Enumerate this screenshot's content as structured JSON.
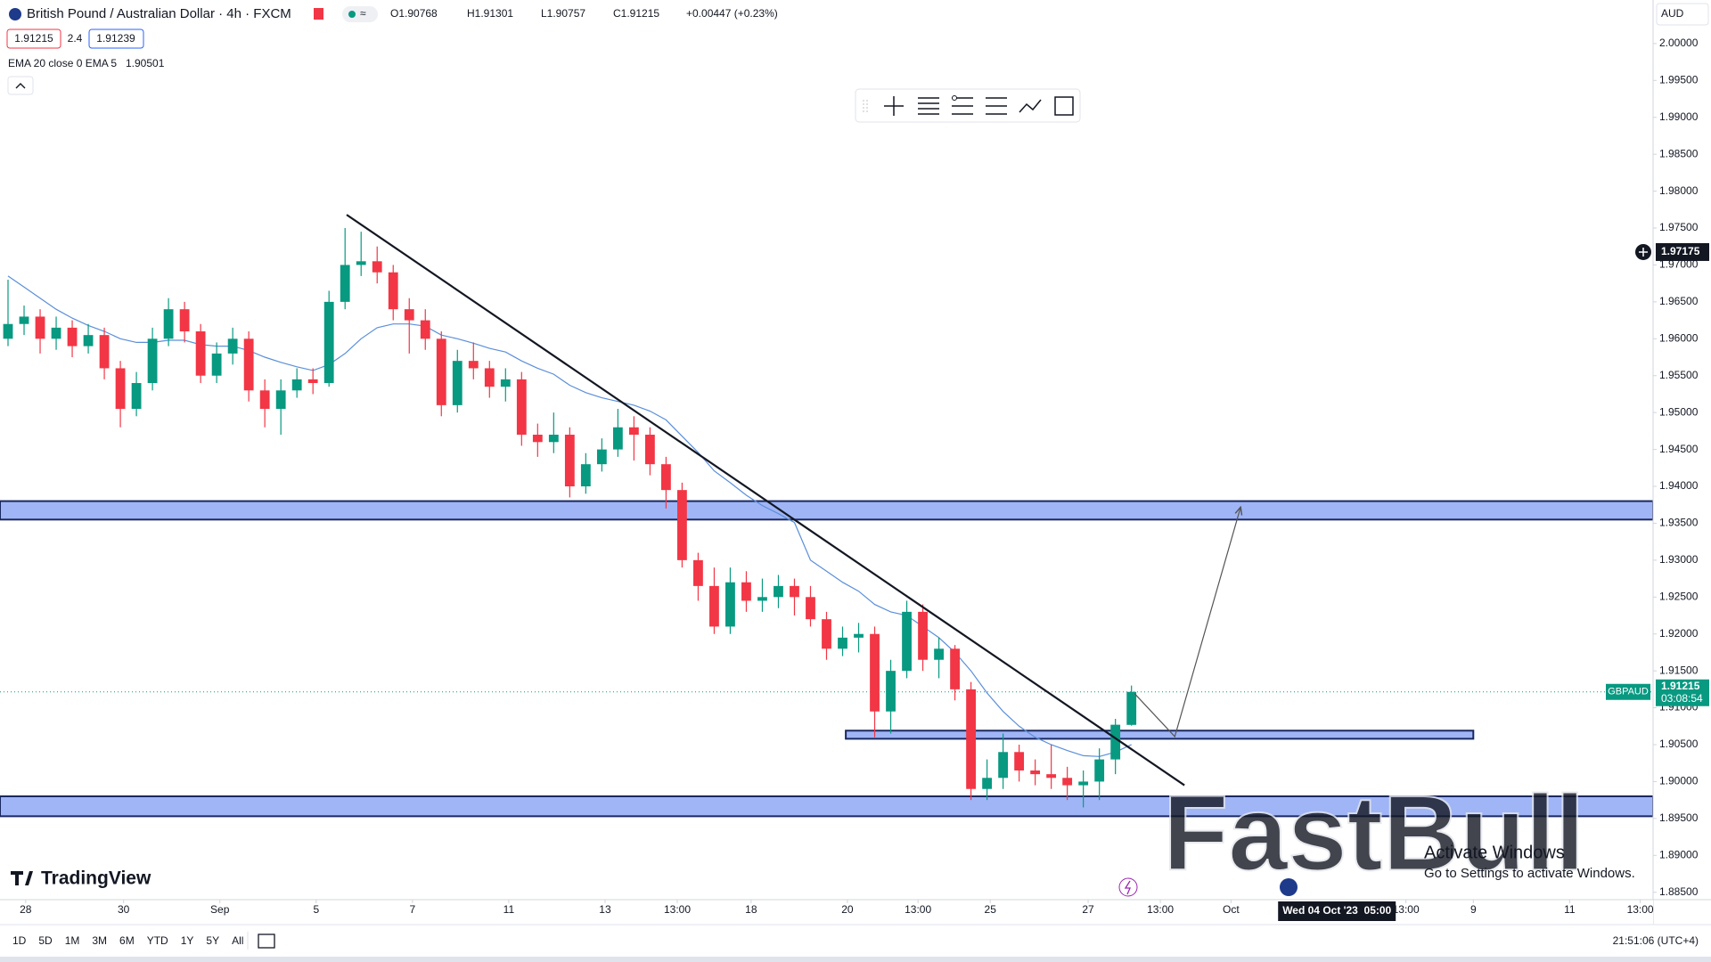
{
  "header": {
    "title": "British Pound / Australian Dollar · 4h · FXCM",
    "ohlc": [
      "O1.90768",
      "H1.91301",
      "L1.90757",
      "C1.91215",
      "+0.00447 (+0.23%)"
    ],
    "bid": "1.91215",
    "spread": "2.4",
    "ask": "1.91239",
    "indicator": "EMA 20 close 0 EMA 5",
    "indicator_value": "1.90501",
    "currency": "AUD"
  },
  "chart_data": {
    "type": "candlestick",
    "colors": {
      "up": "#089981",
      "down": "#f23645"
    },
    "open": [
      1.96,
      1.962,
      1.963,
      1.96,
      1.9615,
      1.959,
      1.9605,
      1.956,
      1.9505,
      1.954,
      1.96,
      1.964,
      1.961,
      1.955,
      1.958,
      1.96,
      1.953,
      1.9505,
      1.953,
      1.9545,
      1.954,
      1.965,
      1.97,
      1.9705,
      1.969,
      1.964,
      1.9625,
      1.96,
      1.951,
      1.957,
      1.956,
      1.9535,
      1.9545,
      1.947,
      1.946,
      1.947,
      1.94,
      1.943,
      1.945,
      1.948,
      1.947,
      1.943,
      1.9395,
      1.93,
      1.9265,
      1.921,
      1.927,
      1.9245,
      1.925,
      1.9265,
      1.925,
      1.922,
      1.918,
      1.9195,
      1.92,
      1.9095,
      1.915,
      1.923,
      1.9165,
      1.918,
      1.9125,
      1.899,
      1.9005,
      1.904,
      1.9015,
      1.901,
      1.9005,
      1.8995,
      1.9,
      1.903,
      1.90768
    ],
    "high": [
      1.968,
      1.9645,
      1.964,
      1.963,
      1.9625,
      1.962,
      1.9615,
      1.957,
      1.9555,
      1.9615,
      1.9655,
      1.965,
      1.962,
      1.9595,
      1.9615,
      1.961,
      1.9545,
      1.9545,
      1.956,
      1.956,
      1.9665,
      1.975,
      1.9745,
      1.9725,
      1.97,
      1.9655,
      1.964,
      1.961,
      1.9585,
      1.9595,
      1.957,
      1.956,
      1.9555,
      1.9485,
      1.95,
      1.948,
      1.9445,
      1.9465,
      1.9505,
      1.9495,
      1.948,
      1.944,
      1.9405,
      1.931,
      1.929,
      1.929,
      1.9285,
      1.9275,
      1.928,
      1.9275,
      1.9265,
      1.923,
      1.921,
      1.9215,
      1.921,
      1.9165,
      1.9245,
      1.924,
      1.9195,
      1.9185,
      1.9135,
      1.903,
      1.9065,
      1.905,
      1.903,
      1.905,
      1.902,
      1.9015,
      1.9045,
      1.9085,
      1.91301
    ],
    "low": [
      1.959,
      1.9605,
      1.958,
      1.9585,
      1.9575,
      1.958,
      1.9545,
      1.948,
      1.9495,
      1.953,
      1.959,
      1.9595,
      1.954,
      1.954,
      1.9565,
      1.9515,
      1.948,
      1.947,
      1.952,
      1.9525,
      1.9535,
      1.964,
      1.9685,
      1.9675,
      1.9625,
      1.958,
      1.9585,
      1.9495,
      1.95,
      1.9545,
      1.952,
      1.9515,
      1.9455,
      1.944,
      1.9445,
      1.9385,
      1.939,
      1.942,
      1.944,
      1.9435,
      1.9415,
      1.937,
      1.929,
      1.9245,
      1.92,
      1.92,
      1.923,
      1.923,
      1.9235,
      1.9225,
      1.921,
      1.9165,
      1.917,
      1.9175,
      1.906,
      1.9065,
      1.914,
      1.915,
      1.914,
      1.911,
      1.8975,
      1.8975,
      1.899,
      1.9,
      1.8995,
      1.899,
      1.8975,
      1.8965,
      1.8975,
      1.901,
      1.90757
    ],
    "close": [
      1.962,
      1.963,
      1.96,
      1.9615,
      1.959,
      1.9605,
      1.956,
      1.9505,
      1.954,
      1.96,
      1.964,
      1.961,
      1.955,
      1.958,
      1.96,
      1.953,
      1.9505,
      1.953,
      1.9545,
      1.954,
      1.965,
      1.97,
      1.9705,
      1.969,
      1.964,
      1.9625,
      1.96,
      1.951,
      1.957,
      1.956,
      1.9535,
      1.9545,
      1.947,
      1.946,
      1.947,
      1.94,
      1.943,
      1.945,
      1.948,
      1.947,
      1.943,
      1.9395,
      1.93,
      1.9265,
      1.921,
      1.927,
      1.9245,
      1.925,
      1.9265,
      1.925,
      1.922,
      1.918,
      1.9195,
      1.92,
      1.9095,
      1.915,
      1.923,
      1.9165,
      1.918,
      1.9125,
      1.899,
      1.9005,
      1.904,
      1.9015,
      1.901,
      1.9005,
      1.8995,
      1.9,
      1.903,
      1.9077,
      1.91215
    ],
    "ema": {
      "color": "#5b8fd9",
      "values": [
        1.9685,
        1.967,
        1.9655,
        1.964,
        1.9628,
        1.9618,
        1.961,
        1.96,
        1.9595,
        1.9595,
        1.9598,
        1.9598,
        1.9592,
        1.959,
        1.959,
        1.9584,
        1.9575,
        1.9568,
        1.9562,
        1.9557,
        1.9565,
        1.958,
        1.96,
        1.9615,
        1.962,
        1.962,
        1.9617,
        1.9605,
        1.96,
        1.9594,
        1.9587,
        1.9582,
        1.957,
        1.956,
        1.9552,
        1.9537,
        1.9527,
        1.952,
        1.9515,
        1.951,
        1.9502,
        1.949,
        1.9468,
        1.9446,
        1.9421,
        1.9405,
        1.9388,
        1.9374,
        1.9363,
        1.9351,
        1.93,
        1.9285,
        1.927,
        1.9258,
        1.924,
        1.923,
        1.9225,
        1.921,
        1.9195,
        1.9175,
        1.915,
        1.912,
        1.9095,
        1.9075,
        1.906,
        1.905,
        1.9042,
        1.9035,
        1.9034,
        1.904,
        1.90501
      ]
    },
    "xlim": [
      0,
      103
    ],
    "ylim": [
      1.884,
      2.0059
    ],
    "yticks": [
      {
        "value": 1.885,
        "label": "1.88500"
      },
      {
        "value": 1.89,
        "label": "1.89000"
      },
      {
        "value": 1.895,
        "label": "1.89500"
      },
      {
        "value": 1.9,
        "label": "1.90000"
      },
      {
        "value": 1.905,
        "label": "1.90500"
      },
      {
        "value": 1.91,
        "label": "1.91000"
      },
      {
        "value": 1.915,
        "label": "1.91500"
      },
      {
        "value": 1.92,
        "label": "1.92000"
      },
      {
        "value": 1.925,
        "label": "1.92500"
      },
      {
        "value": 1.93,
        "label": "1.93000"
      },
      {
        "value": 1.935,
        "label": "1.93500"
      },
      {
        "value": 1.94,
        "label": "1.94000"
      },
      {
        "value": 1.945,
        "label": "1.94500"
      },
      {
        "value": 1.95,
        "label": "1.95000"
      },
      {
        "value": 1.955,
        "label": "1.95500"
      },
      {
        "value": 1.96,
        "label": "1.96000"
      },
      {
        "value": 1.965,
        "label": "1.96500"
      },
      {
        "value": 1.97,
        "label": "1.97000"
      },
      {
        "value": 1.975,
        "label": "1.97500"
      },
      {
        "value": 1.98,
        "label": "1.98000"
      },
      {
        "value": 1.985,
        "label": "1.98500"
      },
      {
        "value": 1.99,
        "label": "1.99000"
      },
      {
        "value": 1.995,
        "label": "1.99500"
      },
      {
        "value": 2.0,
        "label": "2.00000"
      }
    ],
    "xticks": [
      {
        "value": 1.6,
        "label": "28"
      },
      {
        "value": 7.7,
        "label": "30"
      },
      {
        "value": 13.7,
        "label": "Sep"
      },
      {
        "value": 19.7,
        "label": "5"
      },
      {
        "value": 25.7,
        "label": "7"
      },
      {
        "value": 31.7,
        "label": "11"
      },
      {
        "value": 37.7,
        "label": "13"
      },
      {
        "value": 42.2,
        "label": "13:00"
      },
      {
        "value": 46.8,
        "label": "18"
      },
      {
        "value": 52.8,
        "label": "20"
      },
      {
        "value": 57.2,
        "label": "13:00"
      },
      {
        "value": 61.7,
        "label": "25"
      },
      {
        "value": 67.8,
        "label": "27"
      },
      {
        "value": 72.3,
        "label": "13:00"
      },
      {
        "value": 76.7,
        "label": "Oct"
      },
      {
        "value": 87.6,
        "label": "13:00"
      },
      {
        "value": 91.8,
        "label": "9"
      },
      {
        "value": 97.8,
        "label": "11"
      },
      {
        "value": 102.2,
        "label": "13:00"
      }
    ],
    "zones": [
      {
        "top": 1.938,
        "bottom": 1.9355
      },
      {
        "top": 1.9069,
        "bottom": 1.9058,
        "start": 52.7,
        "end": 91.8
      },
      {
        "top": 1.898,
        "bottom": 1.8953
      }
    ],
    "trendline": {
      "x": [
        21.6,
        73.8
      ],
      "y": [
        1.9768,
        1.8995
      ]
    },
    "arrow": {
      "x": [
        70.7,
        73.2,
        77.3
      ],
      "y": [
        1.9119,
        1.9061,
        1.9372
      ]
    },
    "crosshair": 1.97175,
    "time_cursor": {
      "value": 83.3,
      "label": "Wed 04 Oct '23  05:00"
    },
    "last": {
      "symbol": "GBPAUD",
      "price": 1.91215,
      "countdown": "03:08:54"
    }
  },
  "toolbar": {
    "ranges": [
      "1D",
      "5D",
      "1M",
      "3M",
      "6M",
      "YTD",
      "1Y",
      "5Y",
      "All"
    ],
    "clock": "21:51:06 (UTC+4)"
  },
  "logo": "TradingView",
  "watermark": "FastBull",
  "overlay": {
    "title": "Activate Windows",
    "text": "Go to Settings to activate Windows."
  }
}
